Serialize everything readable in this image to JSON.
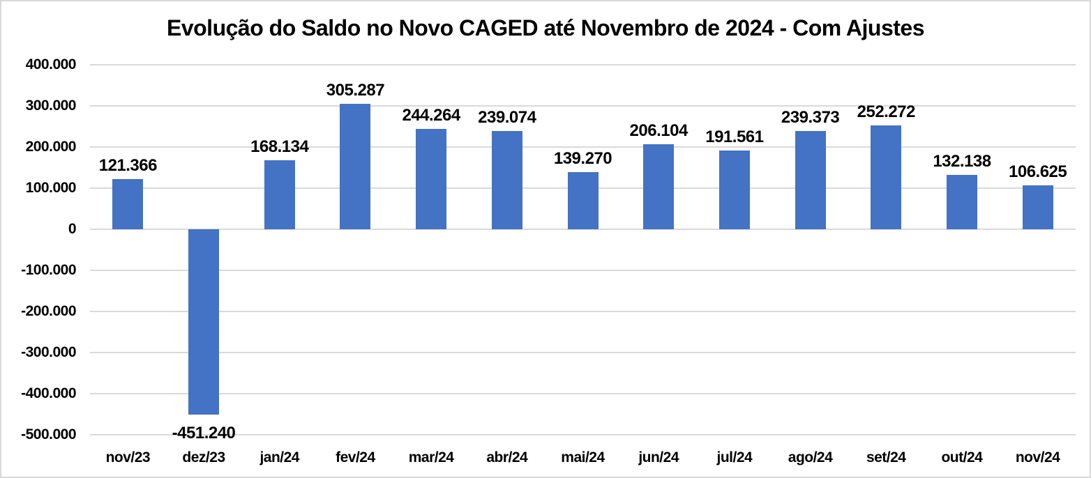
{
  "chart_data": {
    "type": "bar",
    "title": "Evolução do Saldo no Novo CAGED até Novembro de 2024 - Com Ajustes",
    "categories": [
      "nov/23",
      "dez/23",
      "jan/24",
      "fev/24",
      "mar/24",
      "abr/24",
      "mai/24",
      "jun/24",
      "jul/24",
      "ago/24",
      "set/24",
      "out/24",
      "nov/24"
    ],
    "values": [
      121366,
      -451240,
      168134,
      305287,
      244264,
      239074,
      139270,
      206104,
      191561,
      239373,
      252272,
      132138,
      106625
    ],
    "value_labels": [
      "121.366",
      "-451.240",
      "168.134",
      "305.287",
      "244.264",
      "239.074",
      "139.270",
      "206.104",
      "191.561",
      "239.373",
      "252.272",
      "132.138",
      "106.625"
    ],
    "xlabel": "",
    "ylabel": "",
    "ylim": [
      -500000,
      400000
    ],
    "yticks": [
      400000,
      300000,
      200000,
      100000,
      0,
      -100000,
      -200000,
      -300000,
      -400000,
      -500000
    ],
    "ytick_labels": [
      "400.000",
      "300.000",
      "200.000",
      "100.000",
      "0",
      "-100.000",
      "-200.000",
      "-300.000",
      "-400.000",
      "-500.000"
    ],
    "grid": "horizontal",
    "legend": "none",
    "colors": {
      "bar": "#4472C4",
      "gridline": "#D9D9D9",
      "text": "#000000",
      "background": "#FFFFFF",
      "border": "#D9D9D9"
    }
  }
}
